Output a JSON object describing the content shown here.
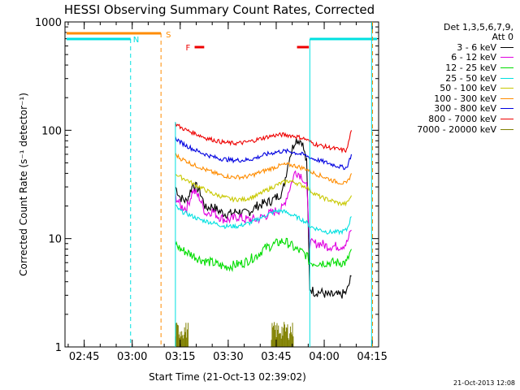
{
  "chart_data": {
    "type": "line",
    "title": "HESSI Observing Summary Count Rates, Corrected",
    "xlabel": "Start Time (21-Oct-13 02:39:02)",
    "ylabel": "Corrected Count Rate (s⁻¹ detector⁻¹)",
    "yscale": "log",
    "ylim": [
      1,
      1000
    ],
    "xlim_minutes": [
      0,
      98
    ],
    "x_unit": "minutes after 02:39:02",
    "x_ticks": [
      {
        "m": 6,
        "label": "02:45"
      },
      {
        "m": 21,
        "label": "03:00"
      },
      {
        "m": 36,
        "label": "03:15"
      },
      {
        "m": 51,
        "label": "03:30"
      },
      {
        "m": 66,
        "label": "03:45"
      },
      {
        "m": 81,
        "label": "04:00"
      },
      {
        "m": 96,
        "label": "04:15"
      }
    ],
    "y_ticks": [
      {
        "v": 1,
        "label": "1"
      },
      {
        "v": 10,
        "label": "10"
      },
      {
        "v": 100,
        "label": "100"
      },
      {
        "v": 1000,
        "label": "1000"
      }
    ],
    "legend_title": "Det 1,3,5,6,7,9,",
    "legend_subtitle": "Att 0",
    "series": [
      {
        "name": "3 - 6 keV",
        "color": "#000000",
        "points": [
          [
            34.5,
            30
          ],
          [
            36,
            24
          ],
          [
            38,
            22
          ],
          [
            40,
            32
          ],
          [
            42,
            28
          ],
          [
            44,
            19
          ],
          [
            46,
            20
          ],
          [
            48,
            18
          ],
          [
            50,
            17
          ],
          [
            52,
            17
          ],
          [
            54,
            18
          ],
          [
            56,
            17
          ],
          [
            58,
            18
          ],
          [
            60,
            20
          ],
          [
            62,
            21
          ],
          [
            64,
            22
          ],
          [
            66,
            24
          ],
          [
            68,
            27
          ],
          [
            70,
            55
          ],
          [
            72,
            82
          ],
          [
            74,
            80
          ],
          [
            75.5,
            50
          ],
          [
            76.5,
            3.5
          ],
          [
            78,
            3.2
          ],
          [
            80,
            3.2
          ],
          [
            82,
            3.0
          ],
          [
            84,
            3.0
          ],
          [
            86,
            3.0
          ],
          [
            88,
            3.2
          ],
          [
            89.5,
            4.5
          ]
        ]
      },
      {
        "name": "6 - 12 keV",
        "color": "#e000e0",
        "points": [
          [
            34.5,
            25
          ],
          [
            36,
            20
          ],
          [
            38,
            19
          ],
          [
            40,
            28
          ],
          [
            42,
            24
          ],
          [
            44,
            17
          ],
          [
            46,
            18
          ],
          [
            48,
            16
          ],
          [
            50,
            15
          ],
          [
            52,
            15
          ],
          [
            54,
            16
          ],
          [
            56,
            15
          ],
          [
            58,
            15
          ],
          [
            60,
            15
          ],
          [
            62,
            16
          ],
          [
            64,
            17
          ],
          [
            66,
            18
          ],
          [
            68,
            19
          ],
          [
            70,
            28
          ],
          [
            72,
            42
          ],
          [
            74,
            38
          ],
          [
            75.5,
            30
          ],
          [
            76.5,
            9
          ],
          [
            78,
            9
          ],
          [
            80,
            9
          ],
          [
            82,
            8.5
          ],
          [
            84,
            8.5
          ],
          [
            86,
            8.5
          ],
          [
            88,
            9
          ],
          [
            89.5,
            12
          ]
        ]
      },
      {
        "name": "12 - 25 keV",
        "color": "#00dd00",
        "points": [
          [
            34.5,
            9
          ],
          [
            36,
            8
          ],
          [
            38,
            7.5
          ],
          [
            40,
            7
          ],
          [
            42,
            6.5
          ],
          [
            44,
            6.2
          ],
          [
            46,
            6
          ],
          [
            48,
            5.7
          ],
          [
            50,
            5.5
          ],
          [
            52,
            5.6
          ],
          [
            54,
            5.8
          ],
          [
            56,
            6
          ],
          [
            58,
            6.5
          ],
          [
            60,
            7
          ],
          [
            62,
            8
          ],
          [
            64,
            8.5
          ],
          [
            66,
            9
          ],
          [
            68,
            9.5
          ],
          [
            70,
            9
          ],
          [
            72,
            8
          ],
          [
            74,
            7.5
          ],
          [
            75.5,
            7
          ],
          [
            76.5,
            6
          ],
          [
            78,
            6
          ],
          [
            80,
            6
          ],
          [
            82,
            6
          ],
          [
            84,
            6
          ],
          [
            86,
            6
          ],
          [
            88,
            6
          ],
          [
            89.5,
            8
          ]
        ]
      },
      {
        "name": "25 - 50 keV",
        "color": "#00e0e0",
        "points": [
          [
            34.5,
            20
          ],
          [
            36,
            18
          ],
          [
            38,
            17
          ],
          [
            40,
            16
          ],
          [
            42,
            15
          ],
          [
            44,
            14.5
          ],
          [
            46,
            14
          ],
          [
            48,
            13.5
          ],
          [
            50,
            13
          ],
          [
            52,
            13
          ],
          [
            54,
            13
          ],
          [
            56,
            13.5
          ],
          [
            58,
            14
          ],
          [
            60,
            15
          ],
          [
            62,
            16
          ],
          [
            64,
            17
          ],
          [
            66,
            18
          ],
          [
            68,
            18
          ],
          [
            70,
            17
          ],
          [
            72,
            16
          ],
          [
            74,
            15
          ],
          [
            75.5,
            14
          ],
          [
            76.5,
            13
          ],
          [
            78,
            12.5
          ],
          [
            80,
            12
          ],
          [
            82,
            11.5
          ],
          [
            84,
            11.5
          ],
          [
            86,
            11.5
          ],
          [
            88,
            12
          ],
          [
            89.5,
            16
          ]
        ]
      },
      {
        "name": "50 - 100 keV",
        "color": "#c8c800",
        "points": [
          [
            34.5,
            40
          ],
          [
            36,
            37
          ],
          [
            38,
            35
          ],
          [
            40,
            32
          ],
          [
            42,
            30
          ],
          [
            44,
            28
          ],
          [
            46,
            26
          ],
          [
            48,
            25
          ],
          [
            50,
            24
          ],
          [
            52,
            23
          ],
          [
            54,
            23
          ],
          [
            56,
            23
          ],
          [
            58,
            24
          ],
          [
            60,
            25
          ],
          [
            62,
            27
          ],
          [
            64,
            29
          ],
          [
            66,
            31
          ],
          [
            68,
            33
          ],
          [
            70,
            34
          ],
          [
            72,
            33
          ],
          [
            74,
            31
          ],
          [
            75.5,
            30
          ],
          [
            76.5,
            28
          ],
          [
            78,
            26
          ],
          [
            80,
            24
          ],
          [
            82,
            23
          ],
          [
            84,
            22
          ],
          [
            86,
            21
          ],
          [
            88,
            21
          ],
          [
            89.5,
            25
          ]
        ]
      },
      {
        "name": "100 - 300 keV",
        "color": "#ff8c00",
        "points": [
          [
            34.5,
            60
          ],
          [
            36,
            55
          ],
          [
            38,
            52
          ],
          [
            40,
            48
          ],
          [
            42,
            46
          ],
          [
            44,
            43
          ],
          [
            46,
            41
          ],
          [
            48,
            39
          ],
          [
            50,
            38
          ],
          [
            52,
            37
          ],
          [
            54,
            37
          ],
          [
            56,
            37
          ],
          [
            58,
            38
          ],
          [
            60,
            40
          ],
          [
            62,
            42
          ],
          [
            64,
            44
          ],
          [
            66,
            46
          ],
          [
            68,
            48
          ],
          [
            70,
            48
          ],
          [
            72,
            47
          ],
          [
            74,
            45
          ],
          [
            75.5,
            44
          ],
          [
            76.5,
            42
          ],
          [
            78,
            40
          ],
          [
            80,
            38
          ],
          [
            82,
            36
          ],
          [
            84,
            34
          ],
          [
            86,
            33
          ],
          [
            88,
            32
          ],
          [
            89.5,
            40
          ]
        ]
      },
      {
        "name": "300 - 800 keV",
        "color": "#0000e0",
        "points": [
          [
            34.5,
            85
          ],
          [
            36,
            78
          ],
          [
            38,
            72
          ],
          [
            40,
            67
          ],
          [
            42,
            63
          ],
          [
            44,
            60
          ],
          [
            46,
            57
          ],
          [
            48,
            55
          ],
          [
            50,
            54
          ],
          [
            52,
            53
          ],
          [
            54,
            53
          ],
          [
            56,
            53
          ],
          [
            58,
            54
          ],
          [
            60,
            56
          ],
          [
            62,
            59
          ],
          [
            64,
            61
          ],
          [
            66,
            63
          ],
          [
            68,
            64
          ],
          [
            70,
            64
          ],
          [
            72,
            62
          ],
          [
            74,
            60
          ],
          [
            75.5,
            58
          ],
          [
            76.5,
            56
          ],
          [
            78,
            54
          ],
          [
            80,
            52
          ],
          [
            82,
            50
          ],
          [
            84,
            48
          ],
          [
            86,
            46
          ],
          [
            88,
            45
          ],
          [
            89.5,
            60
          ]
        ]
      },
      {
        "name": "800 - 7000 keV",
        "color": "#ee0000",
        "points": [
          [
            34.5,
            115
          ],
          [
            36,
            107
          ],
          [
            38,
            100
          ],
          [
            40,
            95
          ],
          [
            42,
            90
          ],
          [
            44,
            85
          ],
          [
            46,
            82
          ],
          [
            48,
            79
          ],
          [
            50,
            77
          ],
          [
            52,
            76
          ],
          [
            54,
            76
          ],
          [
            56,
            77
          ],
          [
            58,
            79
          ],
          [
            60,
            82
          ],
          [
            62,
            85
          ],
          [
            64,
            88
          ],
          [
            66,
            90
          ],
          [
            68,
            91
          ],
          [
            70,
            90
          ],
          [
            72,
            88
          ],
          [
            74,
            85
          ],
          [
            75.5,
            82
          ],
          [
            76.5,
            78
          ],
          [
            78,
            75
          ],
          [
            80,
            72
          ],
          [
            82,
            70
          ],
          [
            84,
            68
          ],
          [
            86,
            66
          ],
          [
            88,
            65
          ],
          [
            89.5,
            100
          ]
        ]
      },
      {
        "name": "7000 - 20000 keV",
        "color": "#808000",
        "bursts": [
          [
            34.5,
            38.5,
            1.55
          ],
          [
            64.5,
            71.5,
            1.55
          ]
        ]
      }
    ],
    "annotations": [
      {
        "label": "S",
        "m": 30,
        "color": "#ff8c00"
      },
      {
        "label": "N",
        "m": 20.5,
        "color": "#00e0e0"
      },
      {
        "label": "F",
        "color": "#ee0000"
      }
    ],
    "grid": false,
    "legend_position": "right"
  },
  "footer": {
    "timestamp": "21-Oct-2013 12:08"
  }
}
